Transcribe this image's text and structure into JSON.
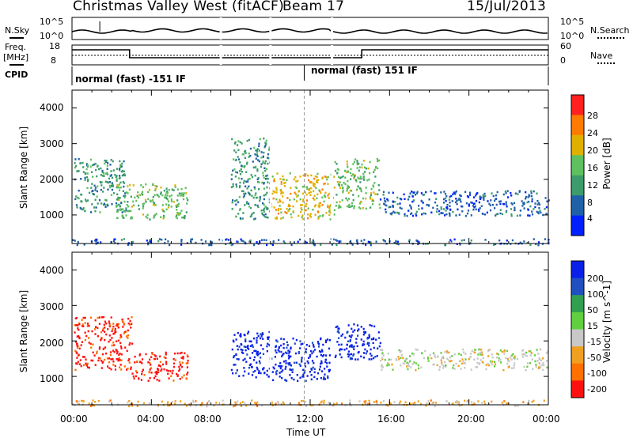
{
  "header": {
    "radar": "Christmas Valley West (fitACF)",
    "beam": "Beam 17",
    "date": "15/Jul/2013"
  },
  "strip1": {
    "left_label": "N.Sky",
    "left_ticks": [
      "10^5",
      "10^0"
    ],
    "right_ticks": [
      "10^5",
      "10^0"
    ],
    "right_label": "N.Search"
  },
  "strip2": {
    "left_label_1": "Freq.",
    "left_label_2": "[MHz]",
    "left_ticks": [
      "18",
      "8"
    ],
    "right_ticks": [
      "60",
      "0"
    ],
    "right_label": "Nave"
  },
  "cpid": {
    "label": "CPID",
    "mode1": "normal (fast) -151 IF",
    "mode2": "normal (fast) 151 IF"
  },
  "chart_data": [
    {
      "type": "heatmap",
      "title": "",
      "xlabel": "",
      "ylabel": "Slant Range [km]",
      "x_ticks": [
        "00:00",
        "04:00",
        "08:00",
        "12:00",
        "16:00",
        "20:00",
        "00:00"
      ],
      "y_ticks": [
        "1000",
        "2000",
        "3000",
        "4000"
      ],
      "ylim": [
        200,
        4500
      ],
      "colorbar_label": "Power [dB]",
      "colorbar_ticks": [
        "4",
        "8",
        "12",
        "16",
        "20",
        "24",
        "28"
      ],
      "colors": [
        "#0020ff",
        "#2060a8",
        "#3c9c6c",
        "#5fc05f",
        "#e0b000",
        "#ff7a00",
        "#ff2020"
      ],
      "scatter_regions": [
        {
          "t0": 0.1,
          "t1": 2.7,
          "r0": 1100,
          "r1": 2600,
          "level": 2
        },
        {
          "t0": 2.2,
          "t1": 5.8,
          "r0": 900,
          "r1": 1900,
          "level": 3
        },
        {
          "t0": 8.0,
          "t1": 10.0,
          "r0": 900,
          "r1": 3200,
          "level": 2
        },
        {
          "t0": 10.0,
          "t1": 13.2,
          "r0": 900,
          "r1": 2200,
          "level": 4
        },
        {
          "t0": 13.2,
          "t1": 15.5,
          "r0": 1200,
          "r1": 2600,
          "level": 3
        },
        {
          "t0": 15.5,
          "t1": 24.0,
          "r0": 1000,
          "r1": 1700,
          "level": 1
        },
        {
          "t0": 0.0,
          "t1": 24.0,
          "r0": 180,
          "r1": 350,
          "level": 1
        }
      ]
    },
    {
      "type": "heatmap",
      "title": "",
      "xlabel": "Time UT",
      "ylabel": "Slant Range [km]",
      "x_ticks": [
        "00:00",
        "04:00",
        "08:00",
        "12:00",
        "16:00",
        "20:00",
        "00:00"
      ],
      "y_ticks": [
        "1000",
        "2000",
        "3000",
        "4000"
      ],
      "ylim": [
        200,
        4500
      ],
      "colorbar_label": "Velocity [m s^-1]",
      "colorbar_ticks": [
        "200",
        "100",
        "50",
        "15",
        "-15",
        "-50",
        "-100",
        "-200"
      ],
      "colors": [
        "#0820e8",
        "#2050c0",
        "#30a050",
        "#60d040",
        "#c8c8c8",
        "#f0a020",
        "#ff7000",
        "#ff1010"
      ],
      "scatter_regions": [
        {
          "t0": 0.1,
          "t1": 3.0,
          "r0": 1200,
          "r1": 2700,
          "level": 7
        },
        {
          "t0": 3.0,
          "t1": 5.9,
          "r0": 900,
          "r1": 1700,
          "level": 7
        },
        {
          "t0": 8.0,
          "t1": 10.0,
          "r0": 1000,
          "r1": 2300,
          "level": 0
        },
        {
          "t0": 10.0,
          "t1": 13.0,
          "r0": 900,
          "r1": 2100,
          "level": 0
        },
        {
          "t0": 13.2,
          "t1": 15.5,
          "r0": 1500,
          "r1": 2500,
          "level": 0
        },
        {
          "t0": 15.5,
          "t1": 24.0,
          "r0": 1200,
          "r1": 1800,
          "level": 4
        },
        {
          "t0": 0.0,
          "t1": 24.0,
          "r0": 180,
          "r1": 350,
          "level": 5
        }
      ]
    }
  ]
}
